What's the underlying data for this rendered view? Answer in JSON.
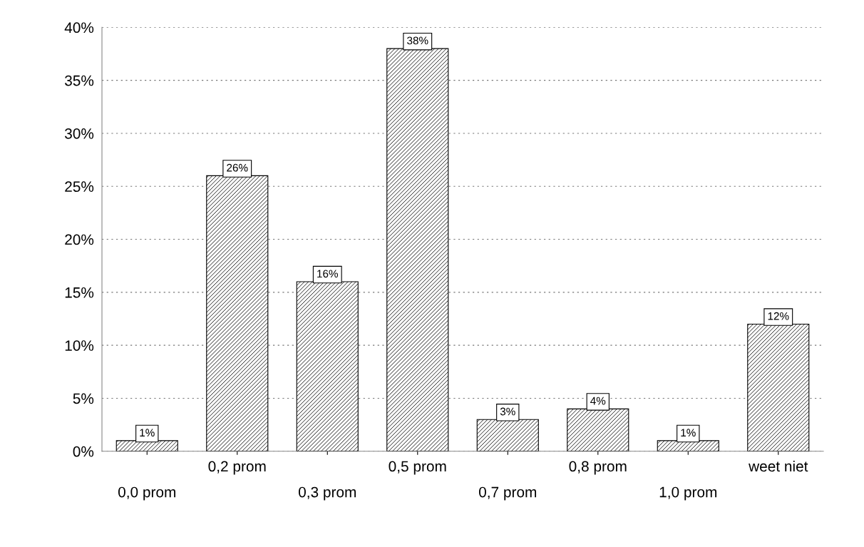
{
  "chart_data": {
    "type": "bar",
    "categories": [
      "0,0 prom",
      "0,2 prom",
      "0,3 prom",
      "0,5 prom",
      "0,7 prom",
      "0,8 prom",
      "1,0 prom",
      "weet niet"
    ],
    "values": [
      1,
      26,
      16,
      38,
      3,
      4,
      1,
      12
    ],
    "value_labels": [
      "1%",
      "26%",
      "16%",
      "38%",
      "3%",
      "4%",
      "1%",
      "12%"
    ],
    "color": "#000000",
    "ylim": [
      0,
      40
    ],
    "yticks": [
      {
        "value": 0,
        "label": "0%"
      },
      {
        "value": 5,
        "label": "5%"
      },
      {
        "value": 10,
        "label": "10%"
      },
      {
        "value": 15,
        "label": "15%"
      },
      {
        "value": 20,
        "label": "20%"
      },
      {
        "value": 25,
        "label": "25%"
      },
      {
        "value": 30,
        "label": "30%"
      },
      {
        "value": 35,
        "label": "35%"
      },
      {
        "value": 40,
        "label": "40%"
      }
    ],
    "grid": "y",
    "legend": false
  }
}
